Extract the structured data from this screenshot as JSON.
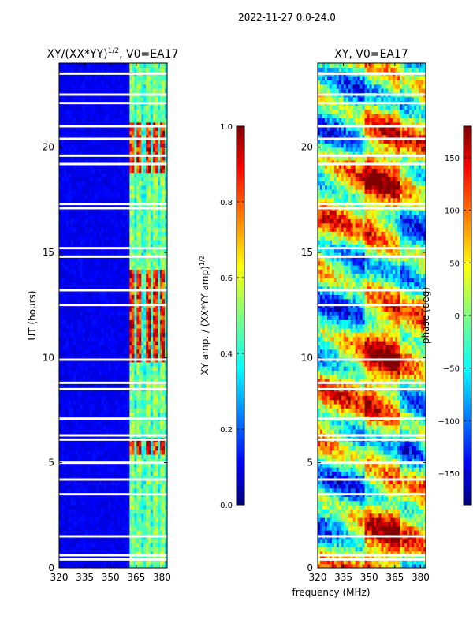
{
  "figure": {
    "suptitle": "2022-11-27 0.0-24.0",
    "shared_xlabel": "frequency (MHz)"
  },
  "chart_data": [
    {
      "type": "heatmap",
      "title_main": "XY/(XX*YY)",
      "title_exp": "1/2",
      "title_suffix": ", V0=EA17",
      "xlabel": "",
      "ylabel": "UT (hours)",
      "xlim": [
        320,
        383
      ],
      "ylim": [
        0,
        24
      ],
      "xticks": [
        "320",
        "335",
        "350",
        "365",
        "380"
      ],
      "xtick_values": [
        320,
        335,
        350,
        365,
        380
      ],
      "yticks": [
        "0",
        "5",
        "10",
        "15",
        "20"
      ],
      "ytick_values": [
        0,
        5,
        10,
        15,
        20
      ],
      "colormap": "jet",
      "colorbar": {
        "label_main": "XY amp. / (XX*YY amp)",
        "label_exp": "1/2",
        "range": [
          0.0,
          1.0
        ],
        "ticks": [
          "0.0",
          "0.2",
          "0.4",
          "0.6",
          "0.8",
          "1.0"
        ],
        "tick_values": [
          0.0,
          0.2,
          0.4,
          0.6,
          0.8,
          1.0
        ]
      },
      "features": {
        "background_level": 0.08,
        "active_band_MHz": [
          361,
          383
        ],
        "bright_channels_MHz": [
          362,
          367,
          372,
          376,
          380
        ],
        "high_episodes_UT": [
          [
            5.4,
            6.2
          ],
          [
            9.8,
            14.2
          ],
          [
            18.8,
            21.2
          ]
        ],
        "flag_gaps_UT": [
          0.4,
          0.6,
          1.5,
          3.5,
          4.2,
          5.0,
          6.1,
          6.3,
          7.1,
          8.5,
          8.8,
          9.9,
          12.5,
          13.2,
          14.8,
          15.2,
          17.1,
          17.3,
          19.2,
          19.6,
          20.4,
          21.0,
          22.1,
          22.5,
          23.5
        ]
      }
    },
    {
      "type": "heatmap",
      "title_main": "XY, V0=EA17",
      "xlabel": "frequency (MHz)",
      "ylabel": "",
      "xlim": [
        320,
        383
      ],
      "ylim": [
        0,
        24
      ],
      "xticks": [
        "320",
        "335",
        "350",
        "365",
        "380"
      ],
      "xtick_values": [
        320,
        335,
        350,
        365,
        380
      ],
      "yticks": [
        "0",
        "5",
        "10",
        "15",
        "20"
      ],
      "ytick_values": [
        0,
        5,
        10,
        15,
        20
      ],
      "colormap": "jet",
      "colorbar": {
        "label": "phase (deg)",
        "range": [
          -180,
          180
        ],
        "ticks": [
          "150",
          "100",
          "50",
          "0",
          "−50",
          "−100",
          "−150"
        ],
        "tick_values": [
          150,
          100,
          50,
          0,
          -50,
          -100,
          -150
        ]
      },
      "features": {
        "phase_pattern": "wrapping stripes, warm ridge near 350-365 MHz",
        "flag_gaps_UT": [
          0.4,
          0.6,
          1.5,
          3.5,
          4.2,
          5.0,
          6.1,
          6.3,
          7.1,
          8.5,
          8.8,
          9.9,
          12.5,
          13.2,
          14.8,
          15.2,
          17.1,
          17.3,
          19.2,
          19.6,
          20.4,
          21.0,
          22.1,
          22.5,
          23.5
        ]
      }
    }
  ]
}
